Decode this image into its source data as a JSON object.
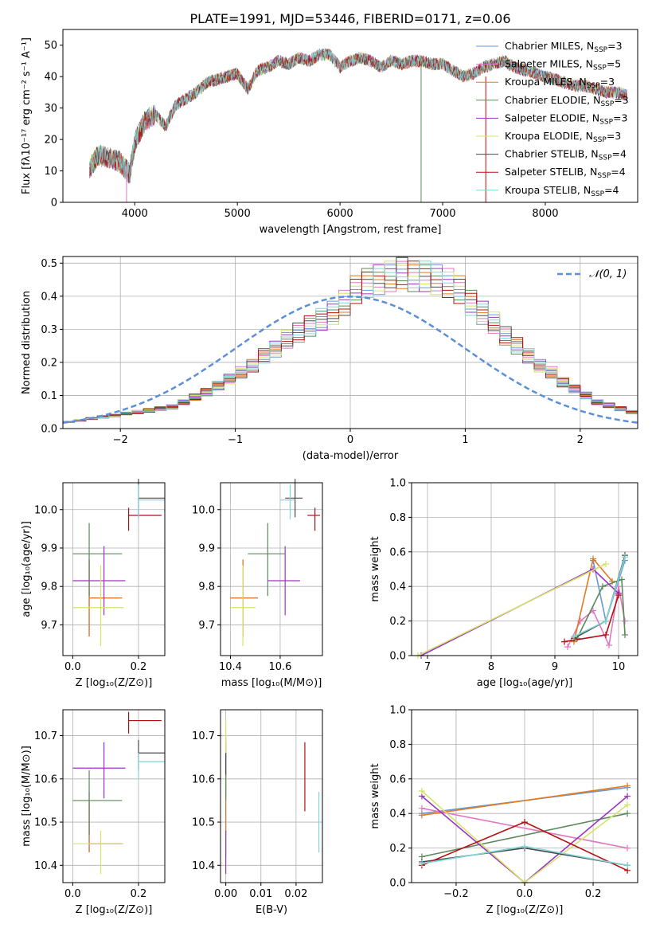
{
  "title": "PLATE=1991, MJD=53446, FIBERID=0171, z=0.06",
  "colors": [
    "#6a98d6",
    "#e377c2",
    "#e07a25",
    "#5a8a5a",
    "#9a35c8",
    "#d6e36a",
    "#4a4a4a",
    "#b51010",
    "#7fd6d6"
  ],
  "legend_entries": [
    {
      "prefix": "Chabrier MILES, N",
      "sub": "SSP",
      "suffix": "=3"
    },
    {
      "prefix": "Salpeter MILES, N",
      "sub": "SSP",
      "suffix": "=5"
    },
    {
      "prefix": "Kroupa MILES, N",
      "sub": "SSP",
      "suffix": "=3"
    },
    {
      "prefix": "Chabrier ELODIE, N",
      "sub": "SSP",
      "suffix": "=3"
    },
    {
      "prefix": "Salpeter ELODIE, N",
      "sub": "SSP",
      "suffix": "=3"
    },
    {
      "prefix": "Kroupa ELODIE, N",
      "sub": "SSP",
      "suffix": "=3"
    },
    {
      "prefix": "Chabrier STELIB, N",
      "sub": "SSP",
      "suffix": "=4"
    },
    {
      "prefix": "Salpeter STELIB, N",
      "sub": "SSP",
      "suffix": "=4"
    },
    {
      "prefix": "Kroupa STELIB, N",
      "sub": "SSP",
      "suffix": "=4"
    }
  ],
  "chart_data": [
    {
      "id": "spectrum",
      "type": "line",
      "xlabel": "wavelength [Angstrom, rest frame]",
      "ylabel": "Flux [fλ10⁻¹⁷ erg cm⁻² s⁻¹ A⁻¹]",
      "xlim": [
        3300,
        8900
      ],
      "ylim": [
        0,
        55
      ],
      "xticks": [
        4000,
        5000,
        6000,
        7000,
        8000
      ],
      "yticks": [
        0,
        10,
        20,
        30,
        40,
        50
      ],
      "grid": false,
      "legend_position": "top-right",
      "x": [
        3560,
        3650,
        3750,
        3850,
        3900,
        3950,
        4000,
        4100,
        4200,
        4300,
        4400,
        4500,
        4600,
        4700,
        4800,
        4900,
        5000,
        5100,
        5200,
        5300,
        5400,
        5500,
        5600,
        5700,
        5800,
        5900,
        6000,
        6100,
        6200,
        6300,
        6400,
        6500,
        6600,
        6700,
        6800,
        6900,
        7000,
        7100,
        7200,
        7300,
        7400,
        7500,
        7600,
        7700,
        7800,
        7900,
        8000,
        8100,
        8200,
        8300,
        8400,
        8500,
        8600,
        8700,
        8800
      ],
      "y": [
        11,
        15,
        14,
        13,
        11,
        9,
        19,
        26,
        28,
        24,
        31,
        33,
        35,
        38,
        39,
        40,
        41,
        36,
        42,
        43,
        45,
        44,
        46,
        45,
        47,
        47,
        43,
        45,
        46,
        45,
        43,
        45,
        44,
        45,
        45,
        44,
        44,
        42,
        40,
        41,
        43,
        44,
        45,
        43,
        42,
        41,
        40,
        39,
        38,
        37,
        37,
        36,
        35,
        35,
        34
      ]
    },
    {
      "id": "residual_histogram",
      "type": "bar",
      "xlabel": "(data-model)/error",
      "ylabel": "Normed distribution",
      "xlim": [
        -2.5,
        2.5
      ],
      "ylim": [
        0,
        0.52
      ],
      "xticks": [
        -2,
        -1,
        0,
        1,
        2
      ],
      "yticks": [
        0.0,
        0.1,
        0.2,
        0.3,
        0.4,
        0.5
      ],
      "grid": true,
      "legend_position": "top-right",
      "reference_series": {
        "name": "𝒩(0, 1)",
        "color": "#5b8fd8"
      },
      "bin_width": 0.1,
      "x_start": -2.5,
      "values": [
        0.02,
        0.025,
        0.03,
        0.035,
        0.04,
        0.045,
        0.05,
        0.055,
        0.06,
        0.065,
        0.08,
        0.095,
        0.11,
        0.13,
        0.15,
        0.17,
        0.19,
        0.22,
        0.24,
        0.27,
        0.29,
        0.31,
        0.33,
        0.35,
        0.38,
        0.42,
        0.44,
        0.45,
        0.46,
        0.47,
        0.46,
        0.46,
        0.45,
        0.44,
        0.42,
        0.38,
        0.35,
        0.32,
        0.28,
        0.25,
        0.22,
        0.19,
        0.17,
        0.14,
        0.12,
        0.1,
        0.08,
        0.07,
        0.06,
        0.05
      ]
    },
    {
      "id": "age_vs_Z",
      "type": "scatter",
      "xlabel": "Z [log₁₀(Z/Z⊙)]",
      "ylabel": "age  [log₁₀(age/yr)]",
      "xlim": [
        -0.03,
        0.28
      ],
      "ylim": [
        9.62,
        10.07
      ],
      "xticks": [
        0.0,
        0.2
      ],
      "yticks": [
        9.7,
        9.8,
        9.9,
        10.0
      ],
      "grid": true,
      "points": [
        {
          "x": 0.05,
          "y": 9.77,
          "xerr": [
            0,
            0.1
          ],
          "yerr": [
            0.1,
            0.1
          ]
        },
        {
          "x": 0.05,
          "y": 9.77,
          "xerr": [
            0,
            0.1
          ],
          "yerr": [
            0.1,
            0.1
          ]
        },
        {
          "x": 0.05,
          "y": 9.77,
          "xerr": [
            0,
            0.1
          ],
          "yerr": [
            0.1,
            0.1
          ]
        },
        {
          "x": 0.05,
          "y": 9.885,
          "xerr": [
            0.05,
            0.1
          ],
          "yerr": [
            0.11,
            0.08
          ]
        },
        {
          "x": 0.095,
          "y": 9.815,
          "xerr": [
            0.095,
            0.065
          ],
          "yerr": [
            0.09,
            0.09
          ]
        },
        {
          "x": 0.085,
          "y": 9.745,
          "xerr": [
            0.085,
            0.07
          ],
          "yerr": [
            0.1,
            0.11
          ]
        },
        {
          "x": 0.2,
          "y": 10.03,
          "xerr": [
            0,
            0.08
          ],
          "yerr": [
            0.05,
            0.05
          ]
        },
        {
          "x": 0.17,
          "y": 9.985,
          "xerr": [
            0,
            0.1
          ],
          "yerr": [
            0.04,
            0.02
          ]
        },
        {
          "x": 0.2,
          "y": 10.025,
          "xerr": [
            0,
            0.08
          ],
          "yerr": [
            0.05,
            0.04
          ]
        }
      ]
    },
    {
      "id": "age_vs_mass",
      "type": "scatter",
      "xlabel": "mass [log₁₀(M/M⊙)]",
      "ylabel": "",
      "xlim": [
        10.36,
        10.77
      ],
      "ylim": [
        9.62,
        10.07
      ],
      "xticks": [
        10.4,
        10.6
      ],
      "yticks": [
        9.7,
        9.8,
        9.9,
        10.0
      ],
      "grid": true,
      "points": [
        {
          "x": 10.45,
          "y": 9.77,
          "xerr": [
            0.05,
            0.06
          ],
          "yerr": [
            0.1,
            0.1
          ]
        },
        {
          "x": 10.45,
          "y": 9.77,
          "xerr": [
            0.05,
            0.06
          ],
          "yerr": [
            0.1,
            0.1
          ]
        },
        {
          "x": 10.45,
          "y": 9.77,
          "xerr": [
            0.05,
            0.06
          ],
          "yerr": [
            0.1,
            0.1
          ]
        },
        {
          "x": 10.55,
          "y": 9.885,
          "xerr": [
            0.08,
            0.07
          ],
          "yerr": [
            0.11,
            0.08
          ]
        },
        {
          "x": 10.62,
          "y": 9.815,
          "xerr": [
            0.07,
            0.06
          ],
          "yerr": [
            0.09,
            0.09
          ]
        },
        {
          "x": 10.45,
          "y": 9.745,
          "xerr": [
            0.05,
            0.05
          ],
          "yerr": [
            0.1,
            0.11
          ]
        },
        {
          "x": 10.66,
          "y": 10.03,
          "xerr": [
            0.04,
            0.03
          ],
          "yerr": [
            0.05,
            0.05
          ]
        },
        {
          "x": 10.74,
          "y": 9.985,
          "xerr": [
            0.03,
            0.02
          ],
          "yerr": [
            0.04,
            0.02
          ]
        },
        {
          "x": 10.64,
          "y": 10.025,
          "xerr": [
            0.04,
            0.02
          ],
          "yerr": [
            0.05,
            0.04
          ]
        }
      ]
    },
    {
      "id": "weight_vs_age",
      "type": "line",
      "xlabel": "age  [log₁₀(age/yr)]",
      "ylabel": "mass weight",
      "xlim": [
        6.75,
        10.3
      ],
      "ylim": [
        0,
        1.0
      ],
      "xticks": [
        7,
        8,
        9,
        10
      ],
      "yticks": [
        0.0,
        0.2,
        0.4,
        0.6,
        0.8,
        1.0
      ],
      "grid": true,
      "series": [
        {
          "x": [
            9.6,
            9.8,
            10.1
          ],
          "y": [
            0.55,
            0.2,
            0.55
          ]
        },
        {
          "x": [
            9.2,
            9.4,
            9.6,
            9.85,
            10.0,
            10.1
          ],
          "y": [
            0.05,
            0.2,
            0.26,
            0.06,
            0.4,
            0.2
          ]
        },
        {
          "x": [
            9.3,
            9.6,
            9.9
          ],
          "y": [
            0.08,
            0.56,
            0.43
          ]
        },
        {
          "x": [
            9.35,
            9.75,
            10.05,
            10.1
          ],
          "y": [
            0.1,
            0.4,
            0.44,
            0.12
          ]
        },
        {
          "x": [
            6.9,
            9.6,
            10.0
          ],
          "y": [
            0.0,
            0.5,
            0.36
          ]
        },
        {
          "x": [
            6.85,
            9.8
          ],
          "y": [
            0.0,
            0.53
          ]
        },
        {
          "x": [
            9.3,
            9.8,
            10.1
          ],
          "y": [
            0.1,
            0.2,
            0.58
          ]
        },
        {
          "x": [
            9.15,
            9.8,
            10.0
          ],
          "y": [
            0.08,
            0.12,
            0.35
          ]
        },
        {
          "x": [
            9.3,
            9.8,
            10.1
          ],
          "y": [
            0.11,
            0.2,
            0.57
          ]
        }
      ]
    },
    {
      "id": "mass_vs_Z",
      "type": "scatter",
      "xlabel": "Z [log₁₀(Z/Z⊙)]",
      "ylabel": "mass [log₁₀(M/M⊙)]",
      "xlim": [
        -0.03,
        0.28
      ],
      "ylim": [
        10.36,
        10.76
      ],
      "xticks": [
        0.0,
        0.2
      ],
      "yticks": [
        10.4,
        10.5,
        10.6,
        10.7
      ],
      "grid": true,
      "points": [
        {
          "x": 0.05,
          "y": 10.45,
          "xerr": [
            0,
            0.1
          ],
          "yerr": [
            0.02,
            0.12
          ]
        },
        {
          "x": 0.05,
          "y": 10.45,
          "xerr": [
            0,
            0.1
          ],
          "yerr": [
            0.02,
            0.12
          ]
        },
        {
          "x": 0.05,
          "y": 10.45,
          "xerr": [
            0,
            0.1
          ],
          "yerr": [
            0.02,
            0.1
          ]
        },
        {
          "x": 0.05,
          "y": 10.55,
          "xerr": [
            0.05,
            0.1
          ],
          "yerr": [
            0.08,
            0.07
          ]
        },
        {
          "x": 0.095,
          "y": 10.625,
          "xerr": [
            0.095,
            0.065
          ],
          "yerr": [
            0.07,
            0.06
          ]
        },
        {
          "x": 0.085,
          "y": 10.45,
          "xerr": [
            0.085,
            0.07
          ],
          "yerr": [
            0.07,
            0.03
          ]
        },
        {
          "x": 0.2,
          "y": 10.66,
          "xerr": [
            0,
            0.08
          ],
          "yerr": [
            0.04,
            0.03
          ]
        },
        {
          "x": 0.17,
          "y": 10.735,
          "xerr": [
            0,
            0.1
          ],
          "yerr": [
            0.03,
            0.02
          ]
        },
        {
          "x": 0.2,
          "y": 10.64,
          "xerr": [
            0,
            0.08
          ],
          "yerr": [
            0.04,
            0.02
          ]
        }
      ]
    },
    {
      "id": "mass_vs_ebv",
      "type": "scatter",
      "xlabel": "E(B-V)",
      "ylabel": "",
      "xlim": [
        -0.0015,
        0.0275
      ],
      "ylim": [
        10.36,
        10.76
      ],
      "xticks": [
        0.0,
        0.01,
        0.02
      ],
      "yticks": [
        10.4,
        10.5,
        10.6,
        10.7
      ],
      "grid": true,
      "points": [
        {
          "x": 0.0,
          "y": 10.47,
          "yerr": [
            0.05,
            0.08
          ]
        },
        {
          "x": 0.0,
          "y": 10.6,
          "yerr": [
            0.04,
            0.1
          ]
        },
        {
          "x": 0.0,
          "y": 10.55,
          "yerr": [
            0.08,
            0.07
          ]
        },
        {
          "x": 0.0,
          "y": 10.62,
          "yerr": [
            0.07,
            0.06
          ]
        },
        {
          "x": 0.0,
          "y": 10.45,
          "yerr": [
            0.07,
            0.03
          ]
        },
        {
          "x": 0.0,
          "y": 10.7,
          "yerr": [
            0.04,
            0.04
          ]
        },
        {
          "x": 0.0,
          "y": 10.63,
          "yerr": [
            0.02,
            0.03
          ]
        },
        {
          "x": 0.0225,
          "y": 10.605,
          "yerr": [
            0.08,
            0.08
          ]
        },
        {
          "x": 0.0265,
          "y": 10.5,
          "yerr": [
            0.07,
            0.07
          ]
        }
      ]
    },
    {
      "id": "weight_vs_Z",
      "type": "line",
      "xlabel": "Z [log₁₀(Z/Z⊙)]",
      "ylabel": "mass weight",
      "xlim": [
        -0.33,
        0.33
      ],
      "ylim": [
        0,
        1.0
      ],
      "xticks": [
        -0.2,
        0.0,
        0.2
      ],
      "yticks": [
        0.0,
        0.2,
        0.4,
        0.6,
        0.8,
        1.0
      ],
      "grid": true,
      "series": [
        {
          "x": [
            -0.3,
            0.3
          ],
          "y": [
            0.4,
            0.55
          ]
        },
        {
          "x": [
            -0.3,
            0.3
          ],
          "y": [
            0.43,
            0.2
          ]
        },
        {
          "x": [
            -0.3,
            0.3
          ],
          "y": [
            0.39,
            0.56
          ]
        },
        {
          "x": [
            -0.3,
            0.3
          ],
          "y": [
            0.15,
            0.4
          ]
        },
        {
          "x": [
            -0.3,
            0.0,
            0.3
          ],
          "y": [
            0.5,
            0.0,
            0.5
          ]
        },
        {
          "x": [
            -0.3,
            0.0,
            0.3
          ],
          "y": [
            0.53,
            0.0,
            0.45
          ]
        },
        {
          "x": [
            -0.3,
            0.0,
            0.3
          ],
          "y": [
            0.12,
            0.2,
            0.1
          ]
        },
        {
          "x": [
            -0.3,
            0.0,
            0.3
          ],
          "y": [
            0.1,
            0.35,
            0.07
          ]
        },
        {
          "x": [
            -0.3,
            0.0,
            0.3
          ],
          "y": [
            0.11,
            0.21,
            0.1
          ]
        }
      ]
    }
  ]
}
